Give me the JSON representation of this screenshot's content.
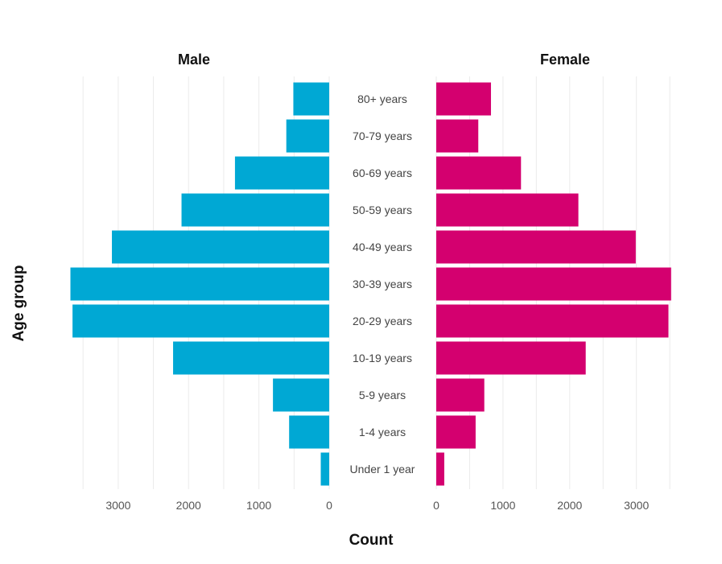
{
  "chart_data": {
    "type": "bar",
    "orientation": "horizontal",
    "layout": "population-pyramid",
    "xlabel": "Count",
    "ylabel": "Age group",
    "categories": [
      "Under 1 year",
      "1-4 years",
      "5-9 years",
      "10-19 years",
      "20-29 years",
      "30-39 years",
      "40-49 years",
      "50-59 years",
      "60-69 years",
      "70-79 years",
      "80+ years"
    ],
    "series": [
      {
        "name": "Male",
        "color": "#00a8d4",
        "values": [
          120,
          570,
          800,
          2220,
          3650,
          3680,
          3090,
          2100,
          1340,
          610,
          510
        ]
      },
      {
        "name": "Female",
        "color": "#d4006f",
        "values": [
          120,
          590,
          720,
          2240,
          3480,
          3520,
          2990,
          2130,
          1270,
          630,
          820
        ]
      }
    ],
    "xlim": [
      0,
      3800
    ],
    "ticks": [
      0,
      1000,
      2000,
      3000
    ],
    "tick_labels": [
      "0",
      "1000",
      "2000",
      "3000"
    ],
    "grid": true,
    "legend": "none"
  }
}
